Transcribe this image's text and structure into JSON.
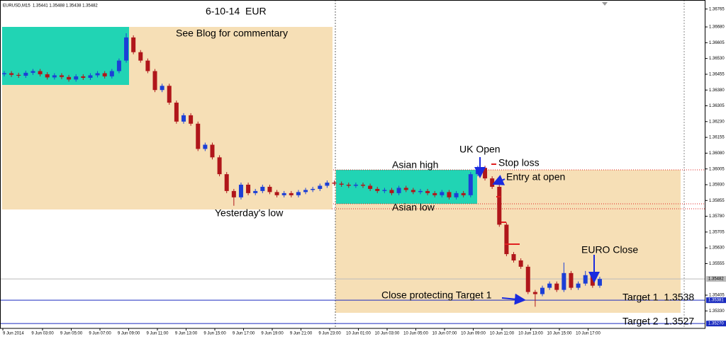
{
  "chart_data": {
    "type": "candlestick",
    "header": "EURUSD,M15  1.35441 1.35488 1.35438 1.35482",
    "title": "6-10-14  EUR",
    "annotations": [
      "See Blog for commentary",
      "Yesterday's low",
      "Asian high",
      "UK Open",
      "Stop loss",
      "Entry at open",
      "Asian low",
      "EURO Close",
      "Close protecting Target 1",
      "Target 1  1.3538",
      "Target 2  1.3527"
    ],
    "x_labels": [
      "9 Jun 2014",
      "9 Jun 03:00",
      "9 Jun 05:00",
      "9 Jun 07:00",
      "9 Jun 09:00",
      "9 Jun 11:00",
      "9 Jun 13:00",
      "9 Jun 15:00",
      "9 Jun 17:00",
      "9 Jun 19:00",
      "9 Jun 21:00",
      "9 Jun 23:00",
      "10 Jun 01:00",
      "10 Jun 03:00",
      "10 Jun 05:00",
      "10 Jun 07:00",
      "10 Jun 09:00",
      "10 Jun 11:00",
      "10 Jun 13:00",
      "10 Jun 15:00",
      "10 Jun 17:00"
    ],
    "open": [
      1.36455,
      1.3646,
      1.36452,
      1.36448,
      1.36462,
      1.3647,
      1.36455,
      1.3644,
      1.3645,
      1.36442,
      1.3643,
      1.36445,
      1.36438,
      1.3645,
      1.3646,
      1.36445,
      1.3647,
      1.3652,
      1.3663,
      1.3656,
      1.3652,
      1.3647,
      1.3638,
      1.364,
      1.3632,
      1.3623,
      1.3626,
      1.3622,
      1.361,
      1.3612,
      1.3606,
      1.3598,
      1.359,
      1.3587,
      1.3593,
      1.3589,
      1.359,
      1.3592,
      1.35895,
      1.3588,
      1.3589,
      1.3588,
      1.35895,
      1.35905,
      1.3591,
      1.35925,
      1.3594,
      1.35935,
      1.3593,
      1.35925,
      1.3593,
      1.35925,
      1.3591,
      1.359,
      1.35905,
      1.3589,
      1.35915,
      1.35905,
      1.35895,
      1.359,
      1.3589,
      1.3588,
      1.35895,
      1.3587,
      1.3589,
      1.3588,
      1.3598,
      1.3601,
      1.3596,
      1.3592,
      1.3574,
      1.356,
      1.3557,
      1.3554,
      1.3542,
      1.3541,
      1.3544,
      1.3546,
      1.3543,
      1.3551,
      1.3544,
      1.3546,
      1.355,
      1.3545
    ],
    "high": [
      1.3647,
      1.3647,
      1.36462,
      1.36472,
      1.3648,
      1.3648,
      1.36465,
      1.3646,
      1.3646,
      1.36452,
      1.36455,
      1.36455,
      1.3646,
      1.3647,
      1.3647,
      1.3648,
      1.3653,
      1.3665,
      1.3664,
      1.3657,
      1.3653,
      1.3648,
      1.3641,
      1.3641,
      1.3633,
      1.3627,
      1.3627,
      1.3623,
      1.3613,
      1.3613,
      1.3607,
      1.3599,
      1.3591,
      1.3594,
      1.3594,
      1.3591,
      1.3593,
      1.3593,
      1.35905,
      1.359,
      1.359,
      1.35905,
      1.35915,
      1.3592,
      1.35935,
      1.3595,
      1.3595,
      1.35945,
      1.3594,
      1.3594,
      1.3594,
      1.35935,
      1.3592,
      1.35915,
      1.35915,
      1.35925,
      1.35925,
      1.35915,
      1.3591,
      1.3591,
      1.359,
      1.35905,
      1.35905,
      1.359,
      1.359,
      1.3599,
      1.3602,
      1.3602,
      1.3597,
      1.3593,
      1.3575,
      1.3561,
      1.3558,
      1.3555,
      1.3543,
      1.3545,
      1.3547,
      1.3547,
      1.3556,
      1.3552,
      1.3547,
      1.3552,
      1.3551,
      1.35492
    ],
    "low": [
      1.36445,
      1.36442,
      1.36438,
      1.36438,
      1.36452,
      1.36445,
      1.3643,
      1.3643,
      1.36432,
      1.3642,
      1.3642,
      1.36428,
      1.36428,
      1.3644,
      1.36435,
      1.36435,
      1.3646,
      1.3651,
      1.3655,
      1.3651,
      1.3646,
      1.3637,
      1.3637,
      1.3631,
      1.3622,
      1.3622,
      1.3621,
      1.3609,
      1.3609,
      1.3605,
      1.3597,
      1.3589,
      1.3583,
      1.3586,
      1.3588,
      1.3588,
      1.3589,
      1.35885,
      1.3587,
      1.3587,
      1.3587,
      1.3587,
      1.35885,
      1.35895,
      1.359,
      1.35915,
      1.35925,
      1.3592,
      1.35915,
      1.35915,
      1.35915,
      1.359,
      1.3589,
      1.3589,
      1.3588,
      1.3588,
      1.35895,
      1.35885,
      1.35885,
      1.3588,
      1.3587,
      1.3587,
      1.3586,
      1.3586,
      1.3587,
      1.3587,
      1.3597,
      1.3595,
      1.3591,
      1.3573,
      1.3559,
      1.3556,
      1.3553,
      1.3541,
      1.3535,
      1.354,
      1.3543,
      1.3542,
      1.3542,
      1.3543,
      1.3543,
      1.3545,
      1.3544,
      1.3544
    ],
    "close": [
      1.3646,
      1.36452,
      1.36448,
      1.36462,
      1.3647,
      1.36455,
      1.3644,
      1.3645,
      1.36442,
      1.3643,
      1.36445,
      1.36438,
      1.3645,
      1.3646,
      1.36445,
      1.3647,
      1.3652,
      1.3663,
      1.3656,
      1.3652,
      1.3647,
      1.3638,
      1.364,
      1.3632,
      1.3623,
      1.3626,
      1.3622,
      1.361,
      1.3612,
      1.3606,
      1.3598,
      1.359,
      1.3587,
      1.3593,
      1.3589,
      1.359,
      1.3592,
      1.35895,
      1.3588,
      1.3589,
      1.3588,
      1.35895,
      1.35905,
      1.3591,
      1.35925,
      1.3594,
      1.35935,
      1.3593,
      1.35925,
      1.3593,
      1.35925,
      1.3591,
      1.359,
      1.35905,
      1.3589,
      1.35915,
      1.35905,
      1.35895,
      1.359,
      1.3589,
      1.3588,
      1.35895,
      1.3587,
      1.3589,
      1.3588,
      1.3598,
      1.3601,
      1.3596,
      1.3592,
      1.3574,
      1.356,
      1.3557,
      1.3554,
      1.3542,
      1.3541,
      1.3544,
      1.3546,
      1.3543,
      1.3551,
      1.3544,
      1.3546,
      1.355,
      1.3545,
      1.35482
    ],
    "up_color": "#1c3fd6",
    "down_color": "#b0161a",
    "ylim": [
      1.35247,
      1.36808
    ],
    "yticks": [
      1.36765,
      {
        "value": 1.3668,
        "label": "1.36680"
      },
      1.36605,
      {
        "value": 1.3653,
        "label": "1.36530"
      },
      1.36455,
      {
        "value": 1.3638,
        "label": "1.36380"
      },
      1.36305,
      {
        "value": 1.3623,
        "label": "1.36230"
      },
      1.36155,
      {
        "value": 1.3608,
        "label": "1.36080"
      },
      1.36005,
      {
        "value": 1.3593,
        "label": "1.35930"
      },
      1.35855,
      {
        "value": 1.3578,
        "label": "1.35780"
      },
      1.35705,
      {
        "value": 1.3563,
        "label": "1.35630"
      },
      1.35555,
      1.35405,
      {
        "value": 1.3533,
        "label": "1.35330"
      }
    ],
    "current_price": 1.35482,
    "levels": [
      1.35381,
      {
        "value": 1.3527,
        "label": "1.35270"
      }
    ],
    "level_color": "#1a2bbf"
  }
}
